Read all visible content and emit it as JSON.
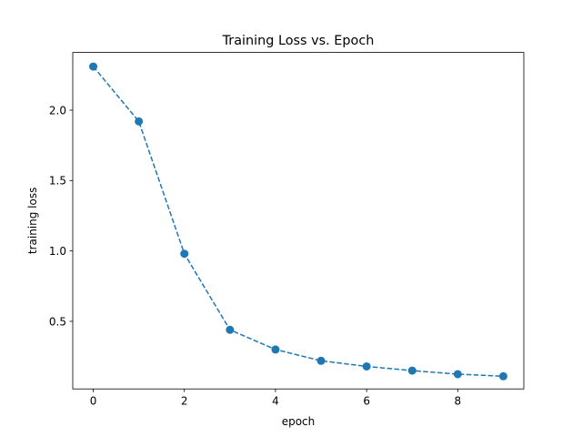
{
  "chart_data": {
    "type": "line",
    "title": "Training Loss vs. Epoch",
    "xlabel": "epoch",
    "ylabel": "training loss",
    "x": [
      0,
      1,
      2,
      3,
      4,
      5,
      6,
      7,
      8,
      9
    ],
    "series": [
      {
        "values": [
          2.31,
          1.92,
          0.98,
          0.44,
          0.3,
          0.22,
          0.18,
          0.15,
          0.125,
          0.11
        ],
        "color": "#1f77b4",
        "line_style": "dashed",
        "marker": "circle"
      }
    ],
    "xlim": [
      -0.45,
      9.45
    ],
    "ylim": [
      0.02,
      2.41
    ],
    "xticks": [
      0,
      2,
      4,
      6,
      8
    ],
    "yticks": [
      0.5,
      1.0,
      1.5,
      2.0
    ],
    "xtick_labels": [
      "0",
      "2",
      "4",
      "6",
      "8"
    ],
    "ytick_labels": [
      "0.5",
      "1.0",
      "1.5",
      "2.0"
    ],
    "grid": false,
    "legend": false
  }
}
